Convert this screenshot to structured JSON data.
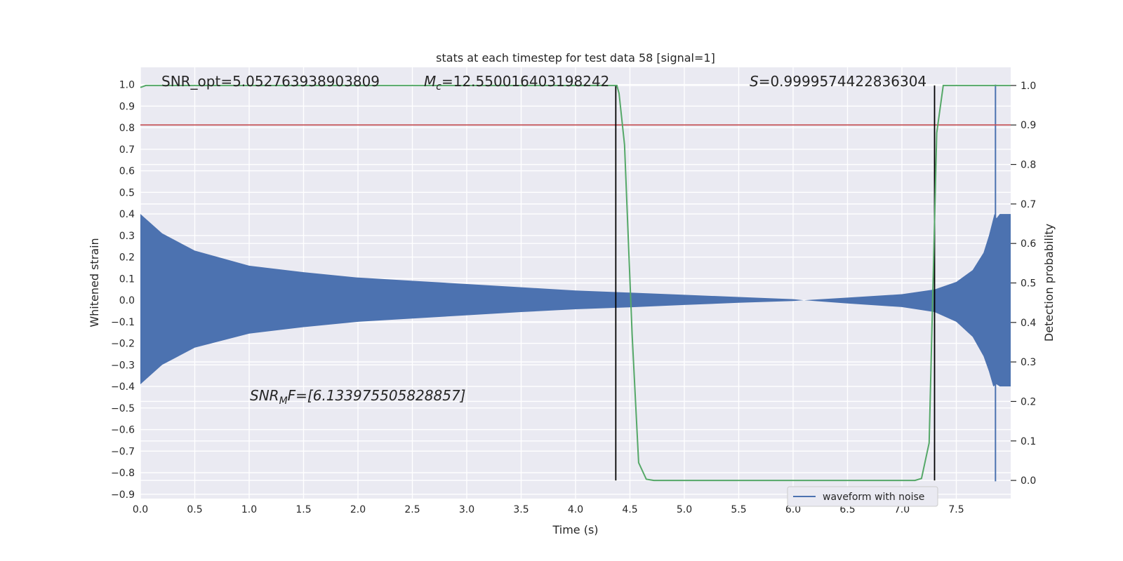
{
  "chart_data": {
    "type": "line",
    "title": "stats at each timestep for test data 58 [signal=1]",
    "xlabel": "Time (s)",
    "ylabel": "Whitened strain",
    "y2label": "Detection probability",
    "xlim": [
      0.0,
      8.0
    ],
    "ylim": [
      -0.92,
      1.08
    ],
    "y2lim": [
      -0.046,
      1.046
    ],
    "xticks": [
      "0.0",
      "0.5",
      "1.0",
      "1.5",
      "2.0",
      "2.5",
      "3.0",
      "3.5",
      "4.0",
      "4.5",
      "5.0",
      "5.5",
      "6.0",
      "6.5",
      "7.0",
      "7.5"
    ],
    "yticks": [
      "1.0",
      "0.9",
      "0.8",
      "0.7",
      "0.6",
      "0.5",
      "0.4",
      "0.3",
      "0.2",
      "0.1",
      "0.0",
      "−0.1",
      "−0.2",
      "−0.3",
      "−0.4",
      "−0.5",
      "−0.6",
      "−0.7",
      "−0.8",
      "−0.9"
    ],
    "y2ticks": [
      "1.0",
      "0.9",
      "0.8",
      "0.7",
      "0.6",
      "0.5",
      "0.4",
      "0.3",
      "0.2",
      "0.1",
      "0.0"
    ],
    "grid": true,
    "legend": {
      "placement": "bottom-right",
      "entries": [
        "waveform with noise"
      ]
    },
    "colors": {
      "waveform": "#4c72b0",
      "probability": "#55a868",
      "threshold": "#c44e52",
      "vlines": "#000000",
      "background": "#eaeaf2",
      "grid": "#ffffff"
    },
    "series": [
      {
        "name": "waveform with noise",
        "axis": "left",
        "kind": "oscillating-envelope",
        "envelope_upper": [
          [
            0.0,
            0.4
          ],
          [
            0.2,
            0.31
          ],
          [
            0.5,
            0.23
          ],
          [
            1.0,
            0.16
          ],
          [
            1.5,
            0.13
          ],
          [
            2.0,
            0.105
          ],
          [
            2.5,
            0.09
          ],
          [
            3.0,
            0.075
          ],
          [
            3.5,
            0.06
          ],
          [
            4.0,
            0.045
          ],
          [
            4.5,
            0.035
          ],
          [
            5.0,
            0.025
          ],
          [
            5.5,
            0.015
          ],
          [
            6.0,
            0.005
          ],
          [
            6.1,
            0.0
          ],
          [
            6.5,
            0.012
          ],
          [
            7.0,
            0.028
          ],
          [
            7.3,
            0.05
          ],
          [
            7.5,
            0.085
          ],
          [
            7.65,
            0.14
          ],
          [
            7.75,
            0.22
          ],
          [
            7.8,
            0.3
          ],
          [
            7.83,
            0.36
          ],
          [
            7.85,
            0.4
          ],
          [
            7.87,
            0.38
          ],
          [
            7.9,
            0.4
          ],
          [
            8.0,
            0.4
          ]
        ],
        "envelope_lower": [
          [
            0.0,
            -0.39
          ],
          [
            0.2,
            -0.3
          ],
          [
            0.5,
            -0.22
          ],
          [
            1.0,
            -0.155
          ],
          [
            1.5,
            -0.125
          ],
          [
            2.0,
            -0.1
          ],
          [
            2.5,
            -0.085
          ],
          [
            3.0,
            -0.07
          ],
          [
            3.5,
            -0.055
          ],
          [
            4.0,
            -0.042
          ],
          [
            4.5,
            -0.033
          ],
          [
            5.0,
            -0.022
          ],
          [
            5.5,
            -0.012
          ],
          [
            6.0,
            -0.004
          ],
          [
            6.1,
            0.0
          ],
          [
            6.5,
            -0.015
          ],
          [
            7.0,
            -0.032
          ],
          [
            7.3,
            -0.055
          ],
          [
            7.5,
            -0.1
          ],
          [
            7.65,
            -0.17
          ],
          [
            7.75,
            -0.26
          ],
          [
            7.8,
            -0.33
          ],
          [
            7.84,
            -0.4
          ],
          [
            7.87,
            -0.39
          ],
          [
            7.9,
            -0.4
          ],
          [
            8.0,
            -0.4
          ]
        ],
        "spike": {
          "x": 7.86,
          "y_min": -0.84,
          "y_max": 1.0
        }
      },
      {
        "name": "detection probability",
        "axis": "right",
        "points": [
          [
            0.0,
            0.995
          ],
          [
            0.05,
            1.0
          ],
          [
            4.38,
            1.0
          ],
          [
            4.4,
            0.98
          ],
          [
            4.45,
            0.85
          ],
          [
            4.52,
            0.37
          ],
          [
            4.58,
            0.045
          ],
          [
            4.65,
            0.003
          ],
          [
            4.72,
            0.0
          ],
          [
            7.12,
            0.0
          ],
          [
            7.18,
            0.005
          ],
          [
            7.25,
            0.095
          ],
          [
            7.32,
            0.88
          ],
          [
            7.38,
            1.0
          ],
          [
            8.0,
            1.0
          ]
        ]
      }
    ],
    "threshold_y2": 0.9,
    "vlines_x": [
      4.37,
      7.3
    ],
    "annotations": [
      {
        "text": "SNR_opt=5.052763938903809"
      },
      {
        "prefix": "M",
        "sub": "c",
        "suffix": "=12.550016403198242"
      },
      {
        "prefix": "S",
        "suffix": "=0.9999574422836304"
      },
      {
        "prefix": "SNR",
        "sub": "M",
        "suffix": "F=[6.133975505828857]"
      }
    ]
  }
}
